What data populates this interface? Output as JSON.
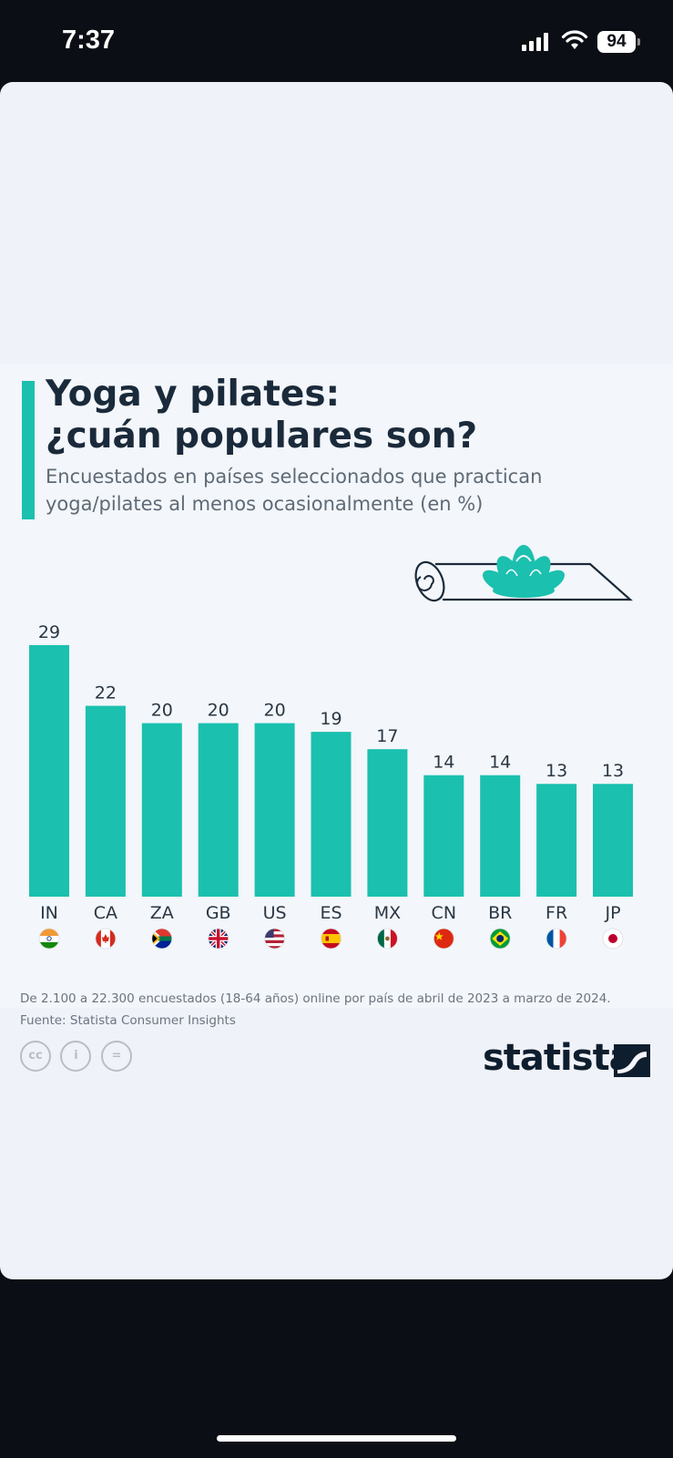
{
  "status_bar": {
    "time": "7:37",
    "battery": "94"
  },
  "header": {
    "title_line1": "Yoga y pilates:",
    "title_line2": "¿cuán populares son?",
    "subtitle_line1": "Encuestados en países seleccionados que practican",
    "subtitle_line2": "yoga/pilates al menos ocasionalmente (en %)"
  },
  "chart_data": {
    "type": "bar",
    "title": "Yoga y pilates: ¿cuán populares son?",
    "subtitle": "Encuestados en países seleccionados que practican yoga/pilates al menos ocasionalmente (en %)",
    "categories": [
      "IN",
      "CA",
      "ZA",
      "GB",
      "US",
      "ES",
      "MX",
      "CN",
      "BR",
      "FR",
      "JP"
    ],
    "values": [
      29,
      22,
      20,
      20,
      20,
      19,
      17,
      14,
      14,
      13,
      13
    ],
    "xlabel": "",
    "ylabel": "%",
    "ylim": [
      0,
      29
    ],
    "bar_color": "#1bc0ae",
    "flags": [
      "india-flag-icon",
      "canada-flag-icon",
      "south-africa-flag-icon",
      "uk-flag-icon",
      "usa-flag-icon",
      "spain-flag-icon",
      "mexico-flag-icon",
      "china-flag-icon",
      "brazil-flag-icon",
      "france-flag-icon",
      "japan-flag-icon"
    ]
  },
  "footer": {
    "note": "De 2.100 a 22.300 encuestados (18-64 años) online por país de abril de 2023 a marzo de 2024.",
    "source": "Fuente: Statista Consumer Insights",
    "brand": "statista",
    "license_icons": [
      "cc",
      "i",
      "="
    ]
  },
  "colors": {
    "accent": "#1bc0ae",
    "title": "#1a2a3a",
    "background": "#f3f6fa"
  }
}
